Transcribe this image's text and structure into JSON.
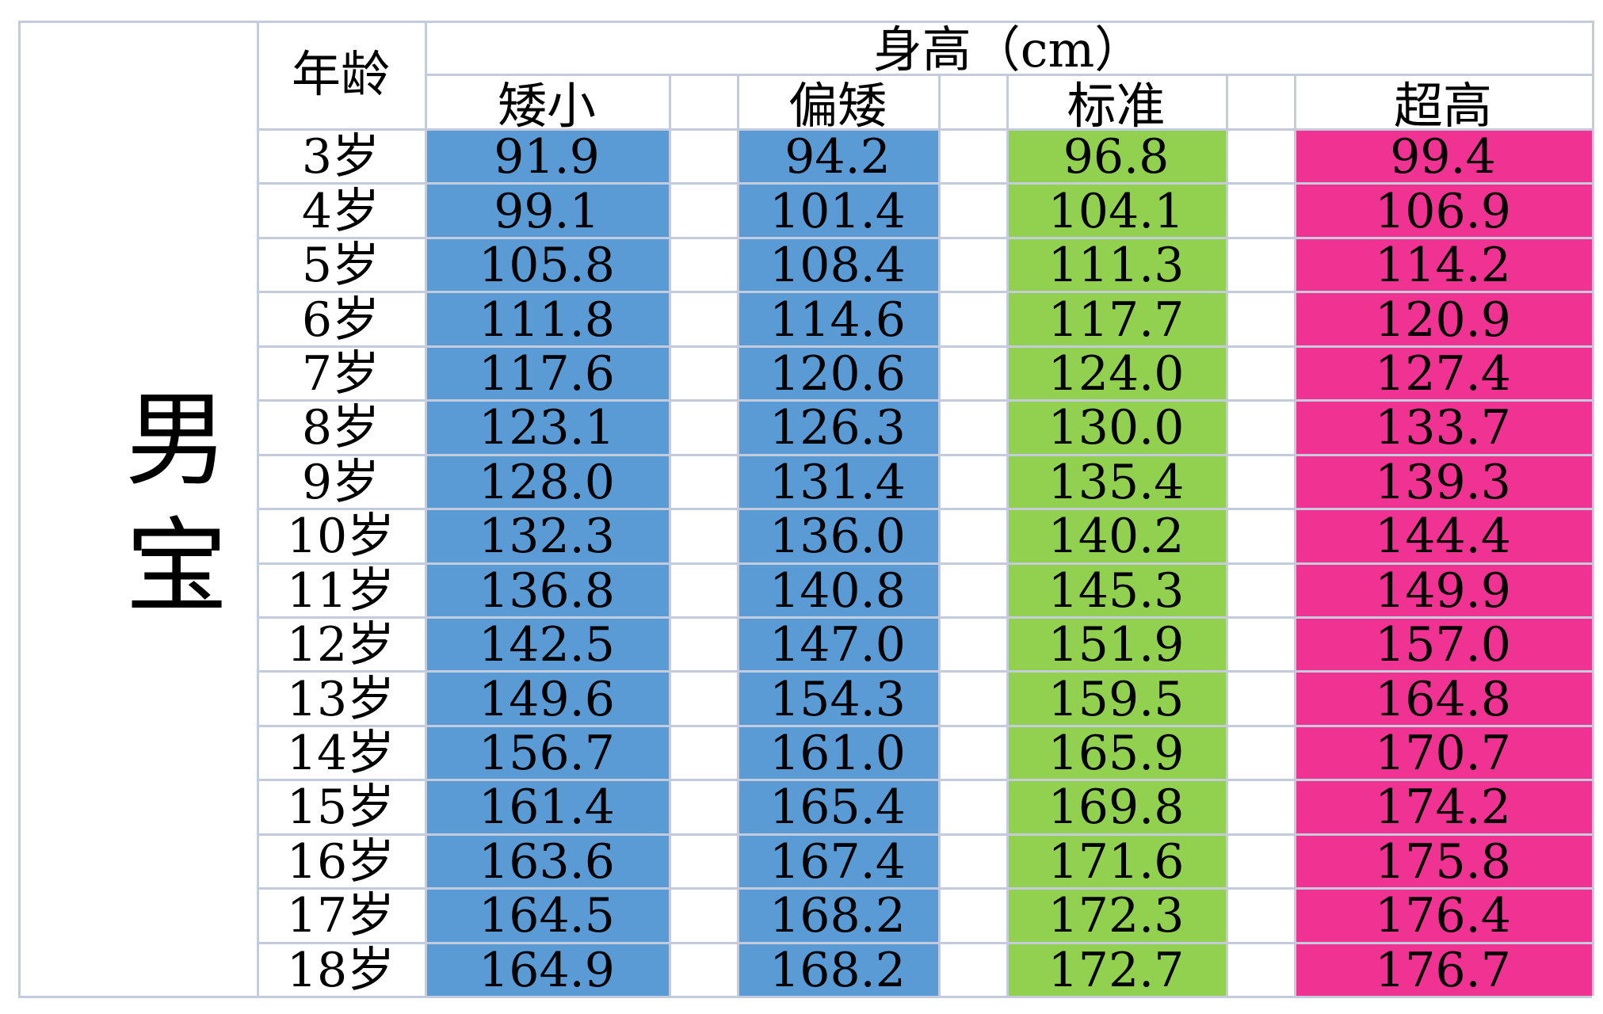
{
  "table": {
    "group_label": "男宝",
    "age_header": "年龄",
    "height_header": "身高（cm）",
    "columns": [
      {
        "label": "矮小",
        "color": "#5b9bd5"
      },
      {
        "label": "偏矮",
        "color": "#5b9bd5"
      },
      {
        "label": "标准",
        "color": "#92d050"
      },
      {
        "label": "超高",
        "color": "#f03292"
      }
    ],
    "rows": [
      {
        "age": "3岁",
        "values": [
          "91.9",
          "94.2",
          "96.8",
          "99.4"
        ]
      },
      {
        "age": "4岁",
        "values": [
          "99.1",
          "101.4",
          "104.1",
          "106.9"
        ]
      },
      {
        "age": "5岁",
        "values": [
          "105.8",
          "108.4",
          "111.3",
          "114.2"
        ]
      },
      {
        "age": "6岁",
        "values": [
          "111.8",
          "114.6",
          "117.7",
          "120.9"
        ]
      },
      {
        "age": "7岁",
        "values": [
          "117.6",
          "120.6",
          "124.0",
          "127.4"
        ]
      },
      {
        "age": "8岁",
        "values": [
          "123.1",
          "126.3",
          "130.0",
          "133.7"
        ]
      },
      {
        "age": "9岁",
        "values": [
          "128.0",
          "131.4",
          "135.4",
          "139.3"
        ]
      },
      {
        "age": "10岁",
        "values": [
          "132.3",
          "136.0",
          "140.2",
          "144.4"
        ]
      },
      {
        "age": "11岁",
        "values": [
          "136.8",
          "140.8",
          "145.3",
          "149.9"
        ]
      },
      {
        "age": "12岁",
        "values": [
          "142.5",
          "147.0",
          "151.9",
          "157.0"
        ]
      },
      {
        "age": "13岁",
        "values": [
          "149.6",
          "154.3",
          "159.5",
          "164.8"
        ]
      },
      {
        "age": "14岁",
        "values": [
          "156.7",
          "161.0",
          "165.9",
          "170.7"
        ]
      },
      {
        "age": "15岁",
        "values": [
          "161.4",
          "165.4",
          "169.8",
          "174.2"
        ]
      },
      {
        "age": "16岁",
        "values": [
          "163.6",
          "167.4",
          "171.6",
          "175.8"
        ]
      },
      {
        "age": "17岁",
        "values": [
          "164.5",
          "168.2",
          "172.3",
          "176.4"
        ]
      },
      {
        "age": "18岁",
        "values": [
          "164.9",
          "168.2",
          "172.7",
          "176.7"
        ]
      }
    ]
  }
}
